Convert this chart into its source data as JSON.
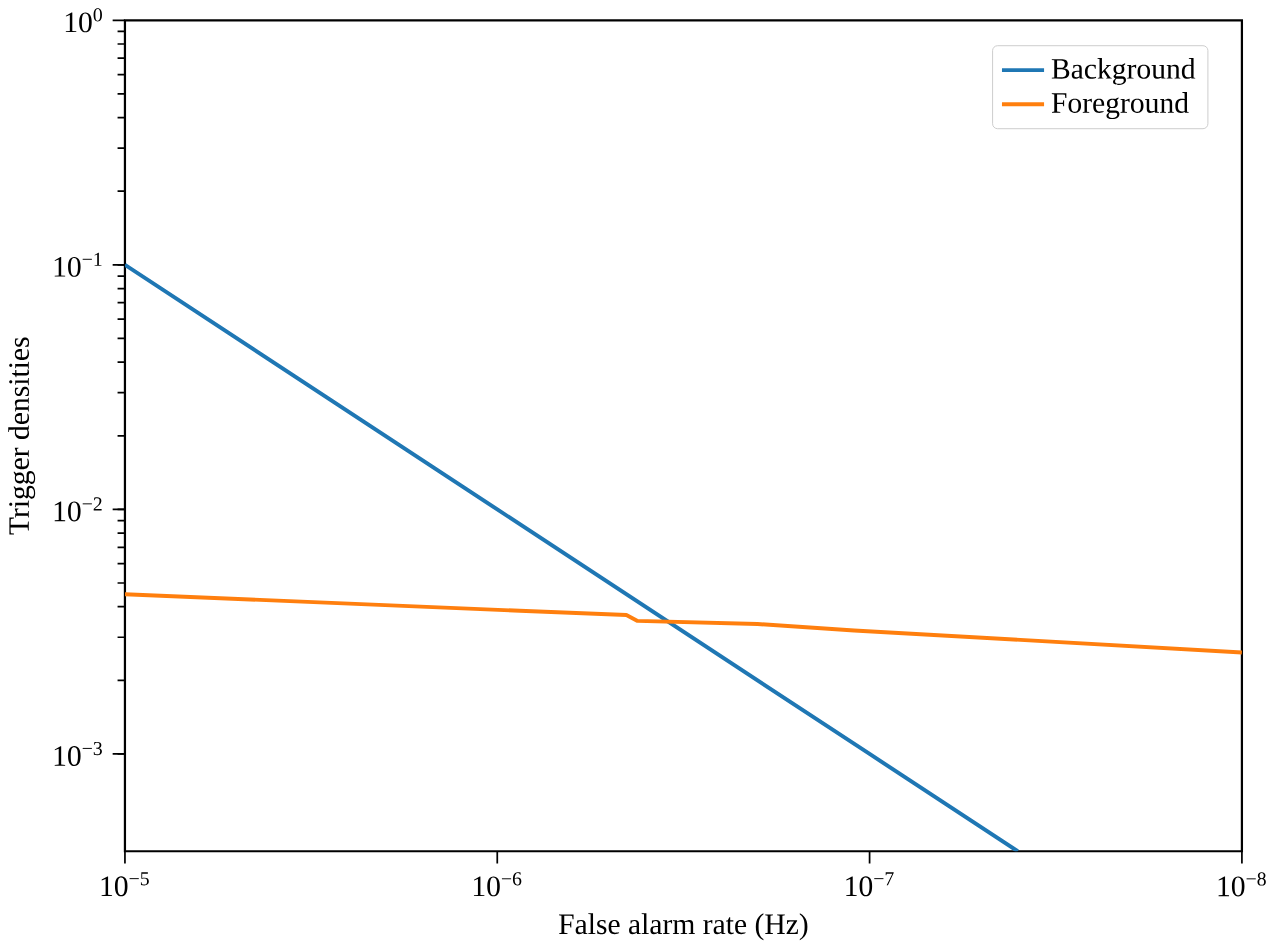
{
  "chart_data": {
    "type": "line",
    "xlabel": "False alarm rate (Hz)",
    "ylabel": "Trigger densities",
    "log": "xy",
    "grid": false,
    "legend": "top right",
    "marker": "none",
    "line_style": "solid",
    "xlim": [
      1e-05,
      1e-08
    ],
    "ylim": [
      0.0004,
      1
    ],
    "xticks": [
      {
        "value": 1e-05,
        "label": "10$^{−5}$"
      },
      {
        "value": 1e-06,
        "label": "10$^{−6}$"
      },
      {
        "value": 1e-07,
        "label": "10$^{−7}$"
      },
      {
        "value": 1e-08,
        "label": "10$^{−8}$"
      }
    ],
    "yticks": [
      {
        "value": 0.001,
        "label": "10$^{−3}$"
      },
      {
        "value": 0.01,
        "label": "10$^{−2}$"
      },
      {
        "value": 0.1,
        "label": "10$^{−1}$"
      },
      {
        "value": 1,
        "label": "10$^{0}$"
      }
    ],
    "series": [
      {
        "name": "Background",
        "color": "#1f77b4",
        "x": [
          1e-05,
          1e-06,
          1e-07,
          4e-08
        ],
        "values": [
          0.1,
          0.01,
          0.001,
          0.0004
        ]
      },
      {
        "name": "Foreground",
        "color": "#ff7f0e",
        "x": [
          1e-05,
          8.7e-07,
          4.5e-07,
          4.2e-07,
          2e-07,
          1.1e-07,
          1e-08
        ],
        "values": [
          0.0045,
          0.00385,
          0.0037,
          0.0035,
          0.0034,
          0.0032,
          0.0026
        ]
      }
    ]
  }
}
